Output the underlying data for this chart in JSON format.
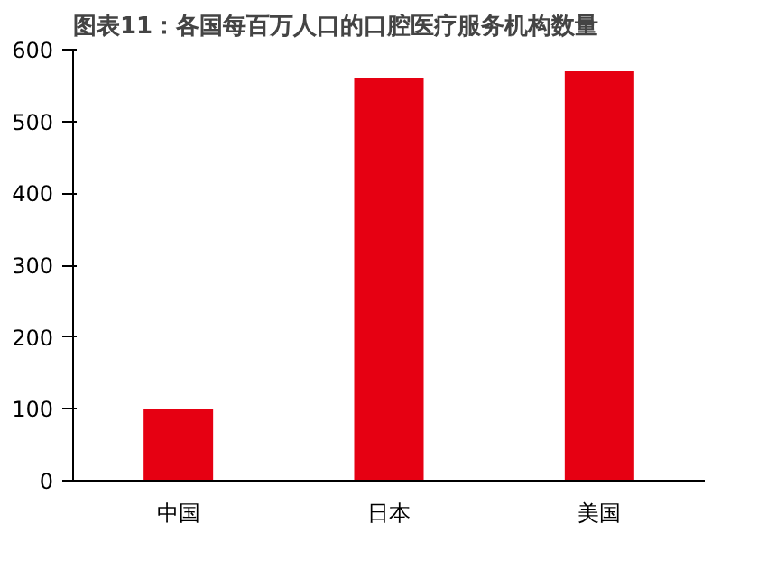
{
  "chart_data": {
    "type": "bar",
    "title": "图表11：各国每百万人口的口腔医疗服务机构数量",
    "categories": [
      "中国",
      "日本",
      "美国"
    ],
    "values": [
      100,
      560,
      570
    ],
    "color": "#e60012",
    "ylim": [
      0,
      600
    ],
    "yticks": [
      0,
      100,
      200,
      300,
      400,
      500,
      600
    ],
    "grid": false
  }
}
